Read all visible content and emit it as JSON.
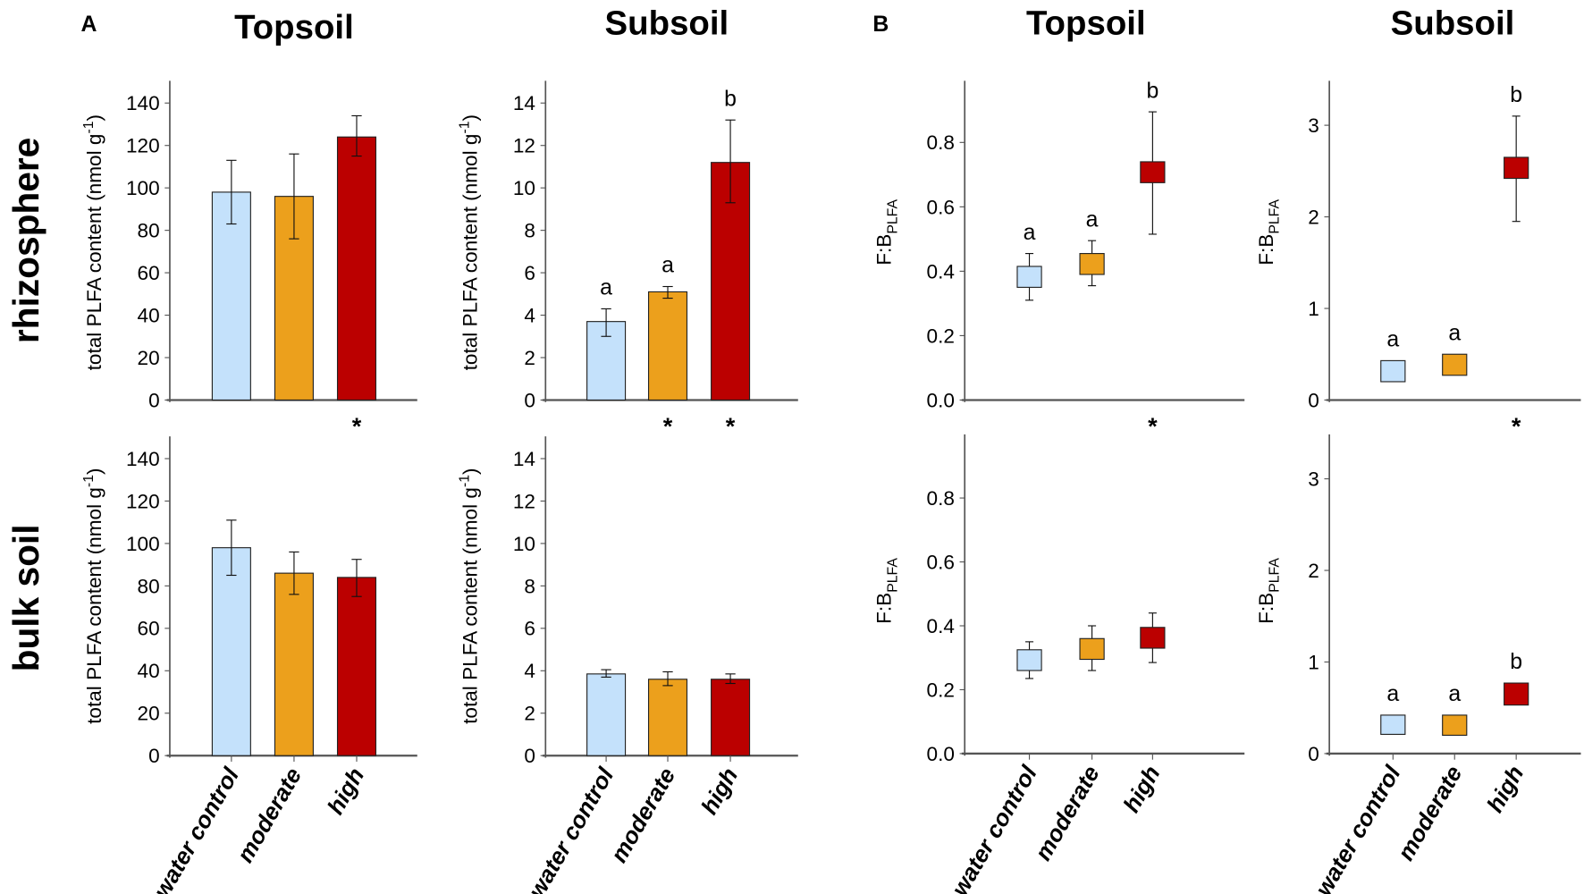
{
  "colors": {
    "water control": "#c4e1fb",
    "moderate": "#eca01c",
    "high": "#bb0000",
    "axis": "#555555"
  },
  "headers": {
    "panel_a": "A",
    "panel_b": "B",
    "a_topsoil": "Topsoil",
    "a_subsoil": "Subsoil",
    "b_topsoil": "Topsoil",
    "b_subsoil": "Subsoil"
  },
  "row_labels": {
    "rhizosphere": "rhizosphere",
    "bulk": "bulk soil"
  },
  "categories": [
    "water control",
    "moderate",
    "high"
  ],
  "chart_data": [
    {
      "id": "A-topsoil-rhizosphere",
      "type": "bar",
      "ylabel": {
        "text": "total PLFA content (nmol g",
        "sup": "-1",
        "close": ")"
      },
      "ylim": [
        0,
        150
      ],
      "yticks": [
        "0",
        "20",
        "40",
        "60",
        "80",
        "100",
        "120",
        "140"
      ],
      "values": [
        98,
        96,
        124
      ],
      "err_low": [
        83,
        76,
        115
      ],
      "err_high": [
        113,
        116,
        134
      ],
      "letters": [
        "",
        "",
        ""
      ],
      "asterisks": [
        false,
        false,
        true
      ]
    },
    {
      "id": "A-subsoil-rhizosphere",
      "type": "bar",
      "ylabel": {
        "text": "total PLFA content (nmol g",
        "sup": "-1",
        "close": ")"
      },
      "ylim": [
        0,
        15
      ],
      "yticks": [
        "0",
        "2",
        "4",
        "6",
        "8",
        "10",
        "12",
        "14"
      ],
      "values": [
        3.7,
        5.1,
        11.2
      ],
      "err_low": [
        3.0,
        4.8,
        9.3
      ],
      "err_high": [
        4.3,
        5.35,
        13.2
      ],
      "letters": [
        "a",
        "a",
        "b"
      ],
      "asterisks": [
        false,
        true,
        true
      ]
    },
    {
      "id": "A-topsoil-bulk",
      "type": "bar",
      "ylabel": {
        "text": "total PLFA content (nmol g",
        "sup": "-1",
        "close": ")"
      },
      "ylim": [
        0,
        150
      ],
      "yticks": [
        "0",
        "20",
        "40",
        "60",
        "80",
        "100",
        "120",
        "140"
      ],
      "values": [
        98,
        86,
        84
      ],
      "err_low": [
        85,
        76,
        75
      ],
      "err_high": [
        111,
        96,
        92.5
      ],
      "letters": [
        "",
        "",
        ""
      ],
      "asterisks": [
        false,
        false,
        false
      ]
    },
    {
      "id": "A-subsoil-bulk",
      "type": "bar",
      "ylabel": {
        "text": "total PLFA content (nmol g",
        "sup": "-1",
        "close": ")"
      },
      "ylim": [
        0,
        15
      ],
      "yticks": [
        "0",
        "2",
        "4",
        "6",
        "8",
        "10",
        "12",
        "14"
      ],
      "values": [
        3.85,
        3.6,
        3.6
      ],
      "err_low": [
        3.7,
        3.3,
        3.4
      ],
      "err_high": [
        4.05,
        3.95,
        3.85
      ],
      "letters": [
        "",
        "",
        ""
      ],
      "asterisks": [
        false,
        false,
        false
      ]
    },
    {
      "id": "B-topsoil-rhizosphere",
      "type": "box",
      "ylabel": {
        "text": "F:B",
        "sub": "PLFA"
      },
      "ylim": [
        0,
        1.0
      ],
      "yticks": [
        "0.0",
        "0.2",
        "0.4",
        "0.6",
        "0.8"
      ],
      "box_low": [
        0.35,
        0.39,
        0.675
      ],
      "box_high": [
        0.415,
        0.455,
        0.74
      ],
      "whisker_low": [
        0.31,
        0.355,
        0.515
      ],
      "whisker_high": [
        0.455,
        0.495,
        0.895
      ],
      "letters": [
        "a",
        "a",
        "b"
      ],
      "asterisks": [
        false,
        false,
        true
      ]
    },
    {
      "id": "B-subsoil-rhizosphere",
      "type": "box",
      "ylabel": {
        "text": "F:B",
        "sub": "PLFA"
      },
      "ylim": [
        0,
        3.5
      ],
      "yticks": [
        "0",
        "1",
        "2",
        "3"
      ],
      "box_low": [
        0.2,
        0.27,
        2.42
      ],
      "box_high": [
        0.43,
        0.5,
        2.65
      ],
      "whisker_low": [
        0.2,
        0.27,
        1.95
      ],
      "whisker_high": [
        0.43,
        0.5,
        3.1
      ],
      "letters": [
        "a",
        "a",
        "b"
      ],
      "asterisks": [
        false,
        false,
        true
      ]
    },
    {
      "id": "B-topsoil-bulk",
      "type": "box",
      "ylabel": {
        "text": "F:B",
        "sub": "PLFA"
      },
      "ylim": [
        0,
        1.0
      ],
      "yticks": [
        "0.0",
        "0.2",
        "0.4",
        "0.6",
        "0.8"
      ],
      "box_low": [
        0.26,
        0.295,
        0.33
      ],
      "box_high": [
        0.325,
        0.36,
        0.395
      ],
      "whisker_low": [
        0.235,
        0.26,
        0.285
      ],
      "whisker_high": [
        0.35,
        0.4,
        0.44
      ],
      "letters": [
        "",
        "",
        ""
      ],
      "asterisks": [
        false,
        false,
        false
      ]
    },
    {
      "id": "B-subsoil-bulk",
      "type": "box",
      "ylabel": {
        "text": "F:B",
        "sub": "PLFA"
      },
      "ylim": [
        0,
        3.5
      ],
      "yticks": [
        "0",
        "1",
        "2",
        "3"
      ],
      "box_low": [
        0.21,
        0.2,
        0.53
      ],
      "box_high": [
        0.42,
        0.42,
        0.77
      ],
      "whisker_low": [
        0.21,
        0.2,
        0.53
      ],
      "whisker_high": [
        0.42,
        0.42,
        0.77
      ],
      "letters": [
        "a",
        "a",
        "b"
      ],
      "asterisks": [
        false,
        false,
        false
      ]
    }
  ]
}
